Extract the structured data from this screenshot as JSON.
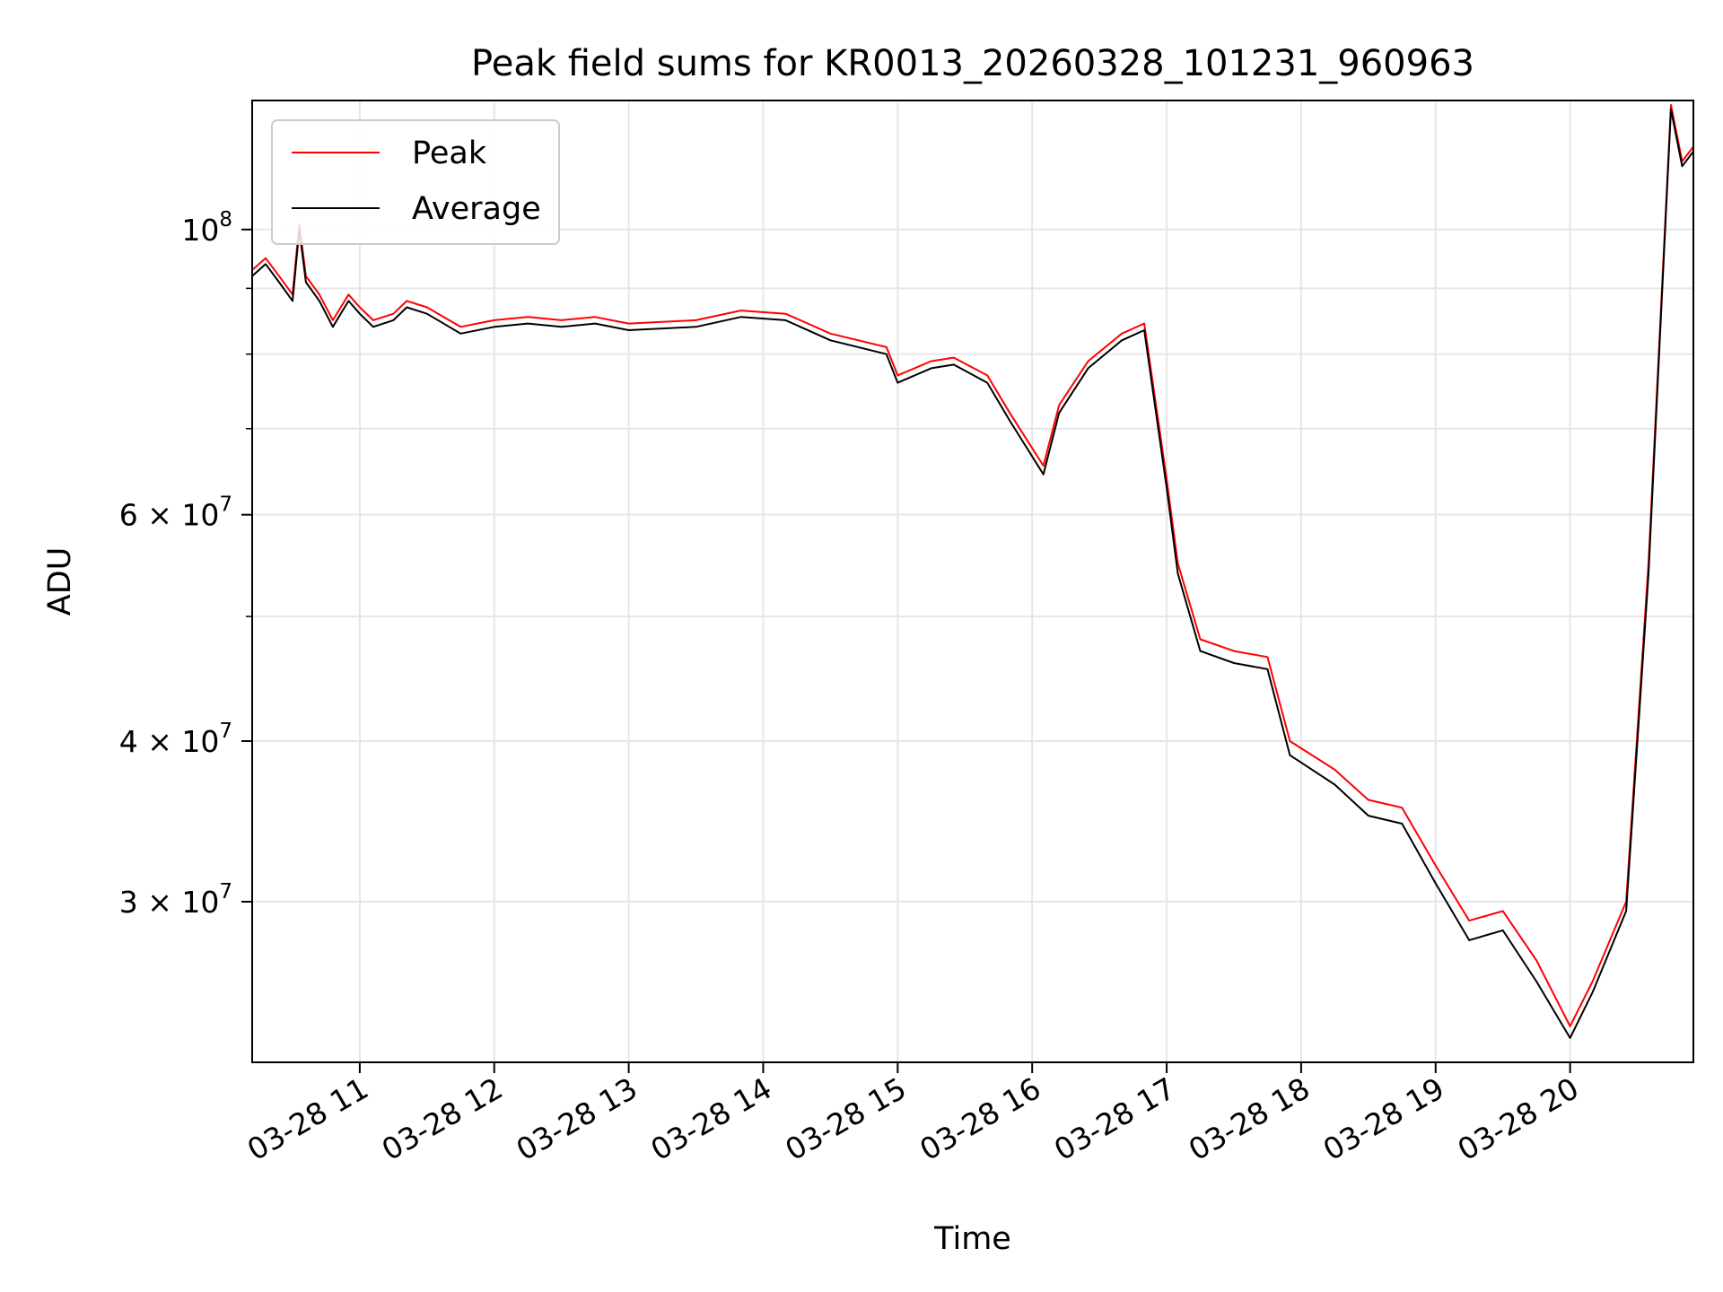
{
  "chart_data": {
    "type": "line",
    "title": "Peak field sums for KR0013_20260328_101231_960963",
    "xlabel": "Time",
    "ylabel": "ADU",
    "yscale": "log",
    "ylim": [
      22500000,
      126000000
    ],
    "xlim": [
      "2026-03-28 10:12",
      "2026-03-28 20:55"
    ],
    "grid": true,
    "legend": "upper left",
    "x_ticks": [
      {
        "value": "2026-03-28 11:00",
        "label": "03-28 11"
      },
      {
        "value": "2026-03-28 12:00",
        "label": "03-28 12"
      },
      {
        "value": "2026-03-28 13:00",
        "label": "03-28 13"
      },
      {
        "value": "2026-03-28 14:00",
        "label": "03-28 14"
      },
      {
        "value": "2026-03-28 15:00",
        "label": "03-28 15"
      },
      {
        "value": "2026-03-28 16:00",
        "label": "03-28 16"
      },
      {
        "value": "2026-03-28 17:00",
        "label": "03-28 17"
      },
      {
        "value": "2026-03-28 18:00",
        "label": "03-28 18"
      },
      {
        "value": "2026-03-28 19:00",
        "label": "03-28 19"
      },
      {
        "value": "2026-03-28 20:00",
        "label": "03-28 20"
      }
    ],
    "y_ticks": [
      {
        "value": 30000000,
        "mantissa": "3",
        "exponent": "7"
      },
      {
        "value": 40000000,
        "mantissa": "4",
        "exponent": "7"
      },
      {
        "value": 60000000,
        "mantissa": "6",
        "exponent": "7"
      },
      {
        "value": 100000000,
        "mantissa": "",
        "exponent": "8"
      }
    ],
    "y_minor_ticks": [
      50000000,
      70000000,
      80000000,
      90000000
    ],
    "times_mul": "×",
    "tick_base": "10",
    "series": [
      {
        "name": "Peak",
        "color": "#ff0000",
        "points": [
          [
            "2026-03-28 10:12",
            93000000
          ],
          [
            "2026-03-28 10:18",
            95000000
          ],
          [
            "2026-03-28 10:24",
            92000000
          ],
          [
            "2026-03-28 10:30",
            89000000
          ],
          [
            "2026-03-28 10:33",
            101000000
          ],
          [
            "2026-03-28 10:36",
            92000000
          ],
          [
            "2026-03-28 10:42",
            89000000
          ],
          [
            "2026-03-28 10:48",
            85000000
          ],
          [
            "2026-03-28 10:55",
            89000000
          ],
          [
            "2026-03-28 11:00",
            87000000
          ],
          [
            "2026-03-28 11:06",
            85000000
          ],
          [
            "2026-03-28 11:15",
            86000000
          ],
          [
            "2026-03-28 11:21",
            88000000
          ],
          [
            "2026-03-28 11:30",
            87000000
          ],
          [
            "2026-03-28 11:45",
            84000000
          ],
          [
            "2026-03-28 12:00",
            85000000
          ],
          [
            "2026-03-28 12:15",
            85500000
          ],
          [
            "2026-03-28 12:30",
            85000000
          ],
          [
            "2026-03-28 12:45",
            85500000
          ],
          [
            "2026-03-28 13:00",
            84500000
          ],
          [
            "2026-03-28 13:30",
            85000000
          ],
          [
            "2026-03-28 13:50",
            86500000
          ],
          [
            "2026-03-28 14:10",
            86000000
          ],
          [
            "2026-03-28 14:30",
            83000000
          ],
          [
            "2026-03-28 14:55",
            81000000
          ],
          [
            "2026-03-28 15:00",
            77000000
          ],
          [
            "2026-03-28 15:15",
            79000000
          ],
          [
            "2026-03-28 15:25",
            79500000
          ],
          [
            "2026-03-28 15:40",
            77000000
          ],
          [
            "2026-03-28 15:50",
            72000000
          ],
          [
            "2026-03-28 16:05",
            65500000
          ],
          [
            "2026-03-28 16:12",
            73000000
          ],
          [
            "2026-03-28 16:25",
            79000000
          ],
          [
            "2026-03-28 16:40",
            83000000
          ],
          [
            "2026-03-28 16:50",
            84500000
          ],
          [
            "2026-03-28 17:00",
            64000000
          ],
          [
            "2026-03-28 17:05",
            55000000
          ],
          [
            "2026-03-28 17:15",
            48000000
          ],
          [
            "2026-03-28 17:30",
            47000000
          ],
          [
            "2026-03-28 17:45",
            46500000
          ],
          [
            "2026-03-28 17:55",
            40000000
          ],
          [
            "2026-03-28 18:15",
            38000000
          ],
          [
            "2026-03-28 18:30",
            36000000
          ],
          [
            "2026-03-28 18:45",
            35500000
          ],
          [
            "2026-03-28 19:00",
            32000000
          ],
          [
            "2026-03-28 19:15",
            29000000
          ],
          [
            "2026-03-28 19:30",
            29500000
          ],
          [
            "2026-03-28 19:45",
            27000000
          ],
          [
            "2026-03-28 20:00",
            24000000
          ],
          [
            "2026-03-28 20:10",
            26000000
          ],
          [
            "2026-03-28 20:25",
            30000000
          ],
          [
            "2026-03-28 20:35",
            55000000
          ],
          [
            "2026-03-28 20:45",
            125000000
          ],
          [
            "2026-03-28 20:50",
            113000000
          ],
          [
            "2026-03-28 20:55",
            116000000
          ]
        ]
      },
      {
        "name": "Average",
        "color": "#000000",
        "points": [
          [
            "2026-03-28 10:12",
            92000000
          ],
          [
            "2026-03-28 10:18",
            94000000
          ],
          [
            "2026-03-28 10:24",
            91000000
          ],
          [
            "2026-03-28 10:30",
            88000000
          ],
          [
            "2026-03-28 10:33",
            100000000
          ],
          [
            "2026-03-28 10:36",
            91000000
          ],
          [
            "2026-03-28 10:42",
            88000000
          ],
          [
            "2026-03-28 10:48",
            84000000
          ],
          [
            "2026-03-28 10:55",
            88000000
          ],
          [
            "2026-03-28 11:00",
            86000000
          ],
          [
            "2026-03-28 11:06",
            84000000
          ],
          [
            "2026-03-28 11:15",
            85000000
          ],
          [
            "2026-03-28 11:21",
            87000000
          ],
          [
            "2026-03-28 11:30",
            86000000
          ],
          [
            "2026-03-28 11:45",
            83000000
          ],
          [
            "2026-03-28 12:00",
            84000000
          ],
          [
            "2026-03-28 12:15",
            84500000
          ],
          [
            "2026-03-28 12:30",
            84000000
          ],
          [
            "2026-03-28 12:45",
            84500000
          ],
          [
            "2026-03-28 13:00",
            83500000
          ],
          [
            "2026-03-28 13:30",
            84000000
          ],
          [
            "2026-03-28 13:50",
            85500000
          ],
          [
            "2026-03-28 14:10",
            85000000
          ],
          [
            "2026-03-28 14:30",
            82000000
          ],
          [
            "2026-03-28 14:55",
            80000000
          ],
          [
            "2026-03-28 15:00",
            76000000
          ],
          [
            "2026-03-28 15:15",
            78000000
          ],
          [
            "2026-03-28 15:25",
            78500000
          ],
          [
            "2026-03-28 15:40",
            76000000
          ],
          [
            "2026-03-28 15:50",
            71000000
          ],
          [
            "2026-03-28 16:05",
            64500000
          ],
          [
            "2026-03-28 16:12",
            72000000
          ],
          [
            "2026-03-28 16:25",
            78000000
          ],
          [
            "2026-03-28 16:40",
            82000000
          ],
          [
            "2026-03-28 16:50",
            83500000
          ],
          [
            "2026-03-28 17:00",
            63000000
          ],
          [
            "2026-03-28 17:05",
            54000000
          ],
          [
            "2026-03-28 17:15",
            47000000
          ],
          [
            "2026-03-28 17:30",
            46000000
          ],
          [
            "2026-03-28 17:45",
            45500000
          ],
          [
            "2026-03-28 17:55",
            39000000
          ],
          [
            "2026-03-28 18:15",
            37000000
          ],
          [
            "2026-03-28 18:30",
            35000000
          ],
          [
            "2026-03-28 18:45",
            34500000
          ],
          [
            "2026-03-28 19:00",
            31000000
          ],
          [
            "2026-03-28 19:15",
            28000000
          ],
          [
            "2026-03-28 19:30",
            28500000
          ],
          [
            "2026-03-28 19:45",
            26000000
          ],
          [
            "2026-03-28 20:00",
            23500000
          ],
          [
            "2026-03-28 20:10",
            25500000
          ],
          [
            "2026-03-28 20:25",
            29500000
          ],
          [
            "2026-03-28 20:35",
            54000000
          ],
          [
            "2026-03-28 20:45",
            124000000
          ],
          [
            "2026-03-28 20:50",
            112000000
          ],
          [
            "2026-03-28 20:55",
            115000000
          ]
        ]
      }
    ]
  }
}
